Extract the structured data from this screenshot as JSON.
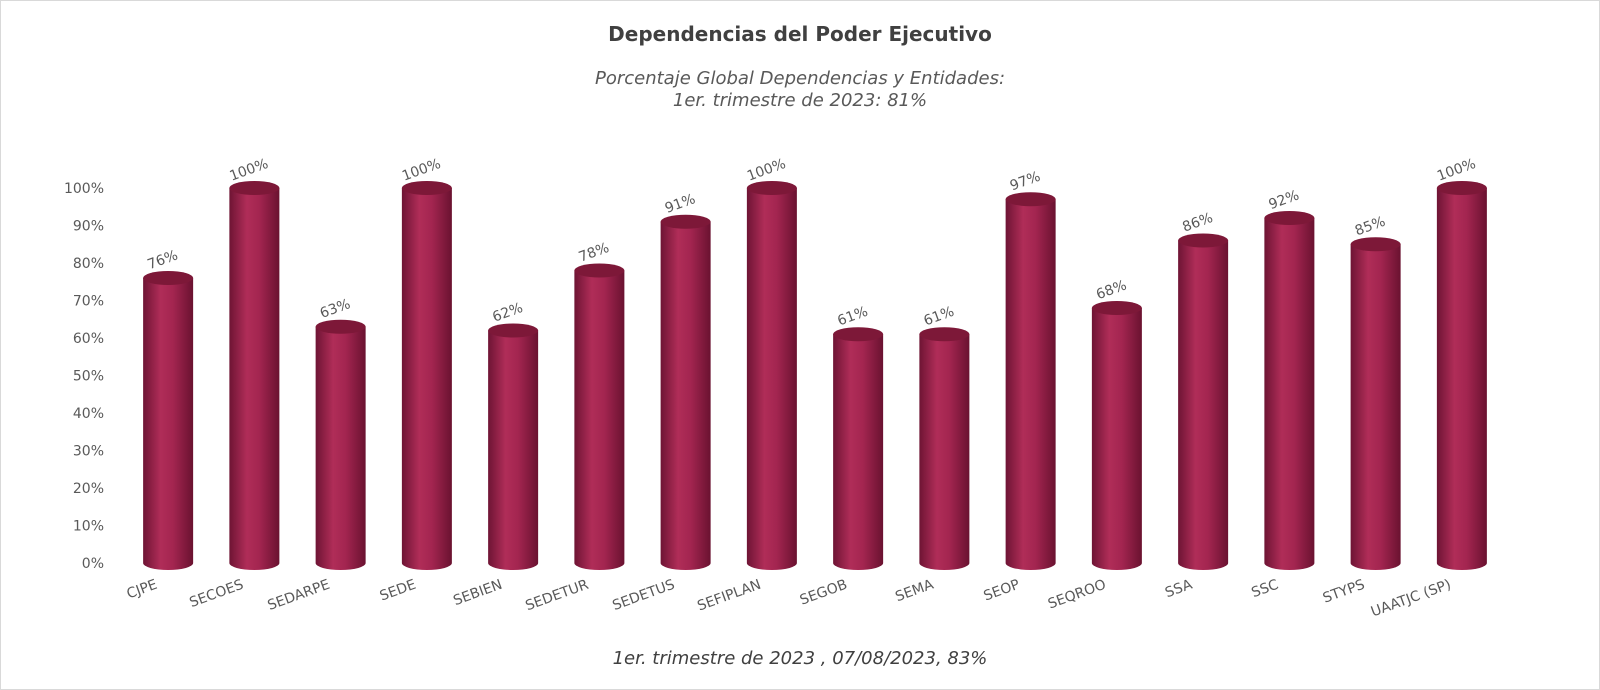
{
  "chart_data": {
    "type": "bar",
    "title": "Dependencias del Poder Ejecutivo",
    "subtitle_lines": [
      "Porcentaje Global  Dependencias y Entidades:",
      "1er. trimestre de 2023: 81%"
    ],
    "footer": "1er. trimestre de 2023 , 07/08/2023, 83%",
    "categories": [
      "CJPE",
      "SECOES",
      "SEDARPE",
      "SEDE",
      "SEBIEN",
      "SEDETUR",
      "SEDETUS",
      "SEFIPLAN",
      "SEGOB",
      "SEMA",
      "SEOP",
      "SEQROO",
      "SSA",
      "SSC",
      "STYPS",
      "UAATJC (SP)"
    ],
    "values": [
      76,
      100,
      63,
      100,
      62,
      78,
      91,
      100,
      61,
      61,
      97,
      68,
      86,
      92,
      85,
      100
    ],
    "value_labels": [
      "76%",
      "100%",
      "63%",
      "100%",
      "62%",
      "78%",
      "91%",
      "100%",
      "61%",
      "61%",
      "97%",
      "68%",
      "86%",
      "92%",
      "85%",
      "100%"
    ],
    "ylim": [
      0,
      100
    ],
    "yticks": [
      "0%",
      "10%",
      "20%",
      "30%",
      "40%",
      "50%",
      "60%",
      "70%",
      "80%",
      "90%",
      "100%"
    ],
    "xlabel": "",
    "ylabel": "",
    "grid": false,
    "legend": "none",
    "bar_style": "cylinder",
    "colors": {
      "bar": "#9e1f49",
      "bar_dark": "#6e1434",
      "bar_light": "#b8325f",
      "top": "#7d1838"
    }
  }
}
